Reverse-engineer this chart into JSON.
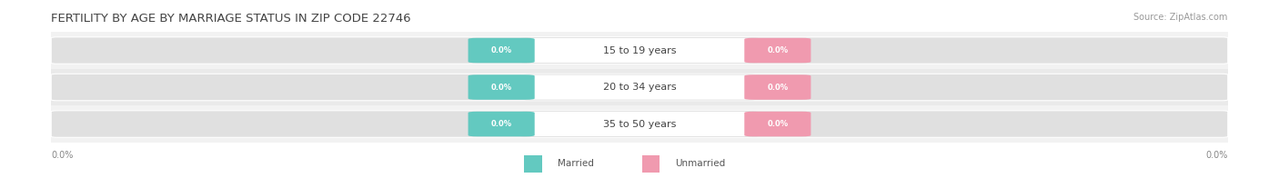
{
  "title": "FERTILITY BY AGE BY MARRIAGE STATUS IN ZIP CODE 22746",
  "source": "Source: ZipAtlas.com",
  "age_groups": [
    "15 to 19 years",
    "20 to 34 years",
    "35 to 50 years"
  ],
  "married_values": [
    "0.0%",
    "0.0%",
    "0.0%"
  ],
  "unmarried_values": [
    "0.0%",
    "0.0%",
    "0.0%"
  ],
  "married_color": "#63C9C0",
  "unmarried_color": "#F09AAF",
  "row_bg_light": "#F2F2F2",
  "row_bg_dark": "#EAEAEA",
  "bar_bg_color": "#E0E0E0",
  "title_fontsize": 9.5,
  "source_fontsize": 7,
  "background_color": "#FFFFFF",
  "axis_label_color": "#888888",
  "text_color": "#444444",
  "legend_label_color": "#555555"
}
